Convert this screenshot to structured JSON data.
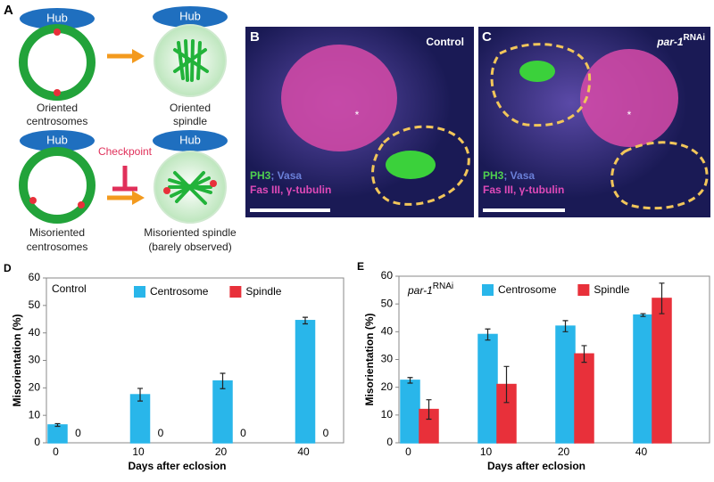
{
  "panel_a": {
    "label": "A",
    "hubs": [
      "Hub",
      "Hub",
      "Hub",
      "Hub"
    ],
    "oriented_centrosomes": [
      "Oriented",
      "centrosomes"
    ],
    "oriented_spindle": [
      "Oriented",
      "spindle"
    ],
    "checkpoint": "Checkpoint",
    "misoriented_centrosomes": [
      "Misoriented",
      "centrosomes"
    ],
    "misoriented_spindle": [
      "Misoriented spindle",
      "(barely observed)"
    ]
  },
  "panel_b": {
    "label": "B",
    "condition": "Control",
    "stain_1": "PH3",
    "stain_2": "; Vasa",
    "stain_3": "Fas III, γ-tubulin",
    "asterisk": "*"
  },
  "panel_c": {
    "label": "C",
    "condition": "par-1",
    "condition_sup": "RNAi",
    "stain_1": "PH3",
    "stain_2": "; Vasa",
    "stain_3": "Fas III, γ-tubulin",
    "asterisk": "*"
  },
  "chart_data": [
    {
      "type": "bar",
      "label": "D",
      "annotation": "Control",
      "xlabel": "Days after eclosion",
      "ylabel": "Misorientation (%)",
      "categories": [
        "0",
        "10",
        "20",
        "40"
      ],
      "ylim": [
        0,
        60
      ],
      "yticks": [
        0,
        10,
        20,
        30,
        40,
        50,
        60
      ],
      "series": [
        {
          "name": "Centrosome",
          "color": "#29b6ea",
          "values": [
            6.5,
            17.5,
            22.5,
            44.5
          ],
          "errors": [
            0.5,
            2.3,
            2.8,
            1.2
          ]
        },
        {
          "name": "Spindle",
          "color": "#e8303a",
          "values": [
            0,
            0,
            0,
            0
          ],
          "data_labels": true
        }
      ]
    },
    {
      "type": "bar",
      "label": "E",
      "annotation": "par-1",
      "annotation_sup": "RNAi",
      "xlabel": "Days after eclosion",
      "ylabel": "Misorientation (%)",
      "categories": [
        "0",
        "10",
        "20",
        "40"
      ],
      "ylim": [
        0,
        60
      ],
      "yticks": [
        0,
        10,
        20,
        30,
        40,
        50,
        60
      ],
      "series": [
        {
          "name": "Centrosome",
          "color": "#29b6ea",
          "values": [
            22.5,
            39,
            42,
            46
          ],
          "errors": [
            1,
            2,
            2,
            0.5
          ]
        },
        {
          "name": "Spindle",
          "color": "#e8303a",
          "values": [
            12,
            21,
            32,
            52
          ],
          "errors": [
            3.5,
            6.5,
            3,
            5.5
          ]
        }
      ]
    }
  ]
}
